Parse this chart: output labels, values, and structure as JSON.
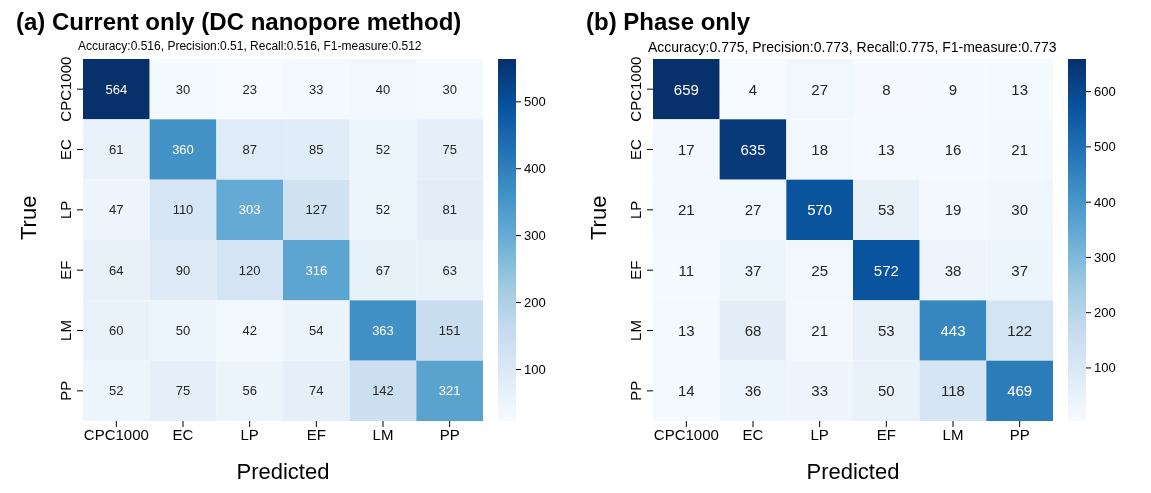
{
  "chart_data": [
    {
      "type": "heatmap",
      "title": "(a) Current only (DC nanopore method)",
      "subtitle": "Accuracy:0.516, Precision:0.51, Recall:0.516, F1-measure:0.512",
      "xlabel": "Predicted",
      "ylabel": "True",
      "categories": [
        "CPC1000",
        "EC",
        "LP",
        "EF",
        "LM",
        "PP"
      ],
      "y_categories": [
        "CPC1000",
        "EC",
        "LP",
        "EF",
        "LM",
        "PP"
      ],
      "cells": [
        [
          564,
          30,
          23,
          33,
          40,
          30
        ],
        [
          61,
          360,
          87,
          85,
          52,
          75
        ],
        [
          47,
          110,
          303,
          127,
          52,
          81
        ],
        [
          64,
          90,
          120,
          316,
          67,
          63
        ],
        [
          60,
          50,
          42,
          54,
          363,
          151
        ],
        [
          52,
          75,
          56,
          74,
          142,
          321
        ]
      ],
      "clim": [
        23,
        564
      ],
      "cticks": [
        100,
        200,
        300,
        400,
        500
      ],
      "data_labels": true
    },
    {
      "type": "heatmap",
      "title": "(b) Phase only",
      "subtitle": "Accuracy:0.775, Precision:0.773, Recall:0.775, F1-measure:0.773",
      "xlabel": "Predicted",
      "ylabel": "True",
      "categories": [
        "CPC1000",
        "EC",
        "LP",
        "EF",
        "LM",
        "PP"
      ],
      "y_categories": [
        "CPC1000",
        "EC",
        "LP",
        "EF",
        "LM",
        "PP"
      ],
      "cells": [
        [
          659,
          4,
          27,
          8,
          9,
          13
        ],
        [
          17,
          635,
          18,
          13,
          16,
          21
        ],
        [
          21,
          27,
          570,
          53,
          19,
          30
        ],
        [
          11,
          37,
          25,
          572,
          38,
          37
        ],
        [
          13,
          68,
          21,
          53,
          443,
          122
        ],
        [
          14,
          36,
          33,
          50,
          118,
          469
        ]
      ],
      "clim": [
        4,
        659
      ],
      "cticks": [
        100,
        200,
        300,
        400,
        500,
        600
      ],
      "data_labels": true
    }
  ]
}
